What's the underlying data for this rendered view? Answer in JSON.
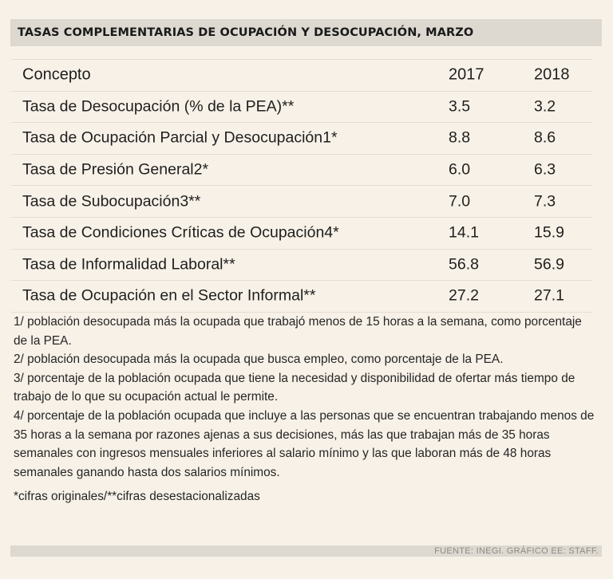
{
  "title": "TASAS COMPLEMENTARIAS DE OCUPACIÓN Y DESOCUPACIÓN, MARZO",
  "table": {
    "header": {
      "concept": "Concepto",
      "year1": "2017",
      "year2": "2018"
    },
    "rows": [
      {
        "concept": "Tasa de Desocupación (% de la PEA)**",
        "y2017": "3.5",
        "y2018": "3.2"
      },
      {
        "concept": "Tasa de Ocupación Parcial y Desocupación1*",
        "y2017": "8.8",
        "y2018": "8.6"
      },
      {
        "concept": "Tasa de Presión General2*",
        "y2017": "6.0",
        "y2018": "6.3"
      },
      {
        "concept": "Tasa de Subocupación3**",
        "y2017": "7.0",
        "y2018": "7.3"
      },
      {
        "concept": "Tasa de Condiciones Críticas de Ocupación4*",
        "y2017": "14.1",
        "y2018": "15.9"
      },
      {
        "concept": "Tasa de Informalidad Laboral**",
        "y2017": "56.8",
        "y2018": "56.9"
      },
      {
        "concept": "Tasa de Ocupación en el Sector Informal**",
        "y2017": "27.2",
        "y2018": "27.1"
      }
    ]
  },
  "notes": [
    "1/ población desocupada más la ocupada que trabajó menos de 15 horas a la semana, como porcentaje de la PEA.",
    "2/ población desocupada más la ocupada que busca empleo, como porcentaje de la PEA.",
    "3/ porcentaje de la población ocupada que tiene la necesidad y disponibilidad de ofertar más tiempo de trabajo de lo que su ocupación actual le permite.",
    "4/ porcentaje de la población ocupada que incluye a las personas que se encuentran trabajando menos de 35 horas a la semana por razones ajenas a sus decisiones, más las que trabajan más de 35 horas semanales con ingresos mensuales inferiores al salario mínimo y las que laboran más de 48 horas semanales ganando hasta dos salarios mínimos."
  ],
  "legend": "*cifras originales/**cifras desestacionalizadas",
  "source": "FUENTE: INEGI. GRÁFICO EE: STAFF."
}
